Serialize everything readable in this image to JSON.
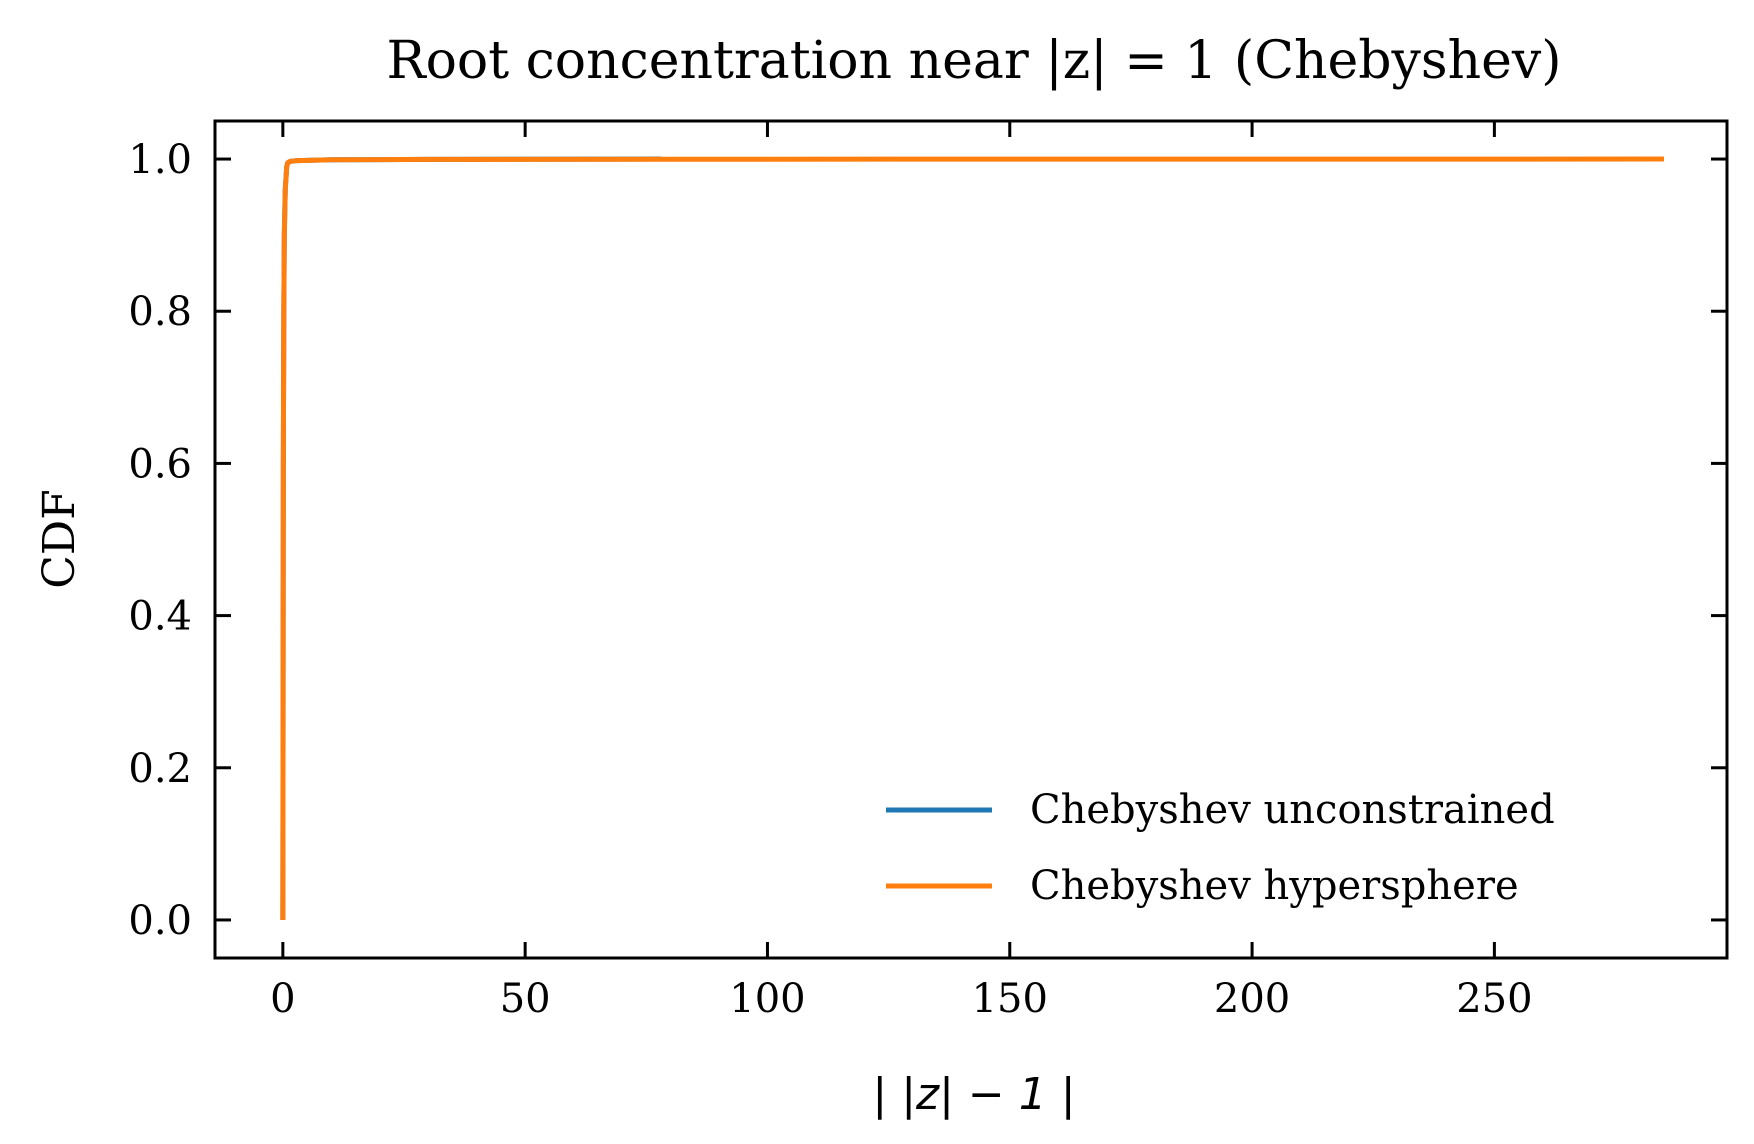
{
  "chart_data": {
    "type": "line",
    "title": "Root concentration near |z| = 1 (Chebyshev)",
    "xlabel": "| |z| − 1 |",
    "ylabel": "CDF",
    "xlim": [
      -14,
      298
    ],
    "ylim": [
      -0.05,
      1.05
    ],
    "xticks": [
      0,
      50,
      100,
      150,
      200,
      250
    ],
    "xtick_labels": [
      "0",
      "50",
      "100",
      "150",
      "200",
      "250"
    ],
    "yticks": [
      0.0,
      0.2,
      0.4,
      0.6,
      0.8,
      1.0
    ],
    "ytick_labels": [
      "0.0",
      "0.2",
      "0.4",
      "0.6",
      "0.8",
      "1.0"
    ],
    "grid": false,
    "legend_position": "lower-right",
    "series": [
      {
        "name": "Chebyshev unconstrained",
        "color": "#1f77b4",
        "x": [
          0,
          0.05,
          0.1,
          0.2,
          0.3,
          0.5,
          0.8,
          1.0,
          1.5,
          3,
          10,
          30,
          78
        ],
        "y": [
          0.0,
          0.3,
          0.6,
          0.8,
          0.9,
          0.96,
          0.99,
          0.995,
          0.997,
          0.998,
          0.999,
          0.9995,
          1.0
        ]
      },
      {
        "name": "Chebyshev hypersphere",
        "color": "#ff7f0e",
        "x": [
          0,
          0.05,
          0.1,
          0.2,
          0.3,
          0.5,
          0.8,
          1.0,
          1.5,
          3,
          10,
          30,
          100,
          200,
          285
        ],
        "y": [
          0.0,
          0.3,
          0.6,
          0.8,
          0.9,
          0.96,
          0.99,
          0.995,
          0.997,
          0.998,
          0.999,
          0.9995,
          0.9998,
          0.9999,
          1.0
        ]
      }
    ]
  }
}
